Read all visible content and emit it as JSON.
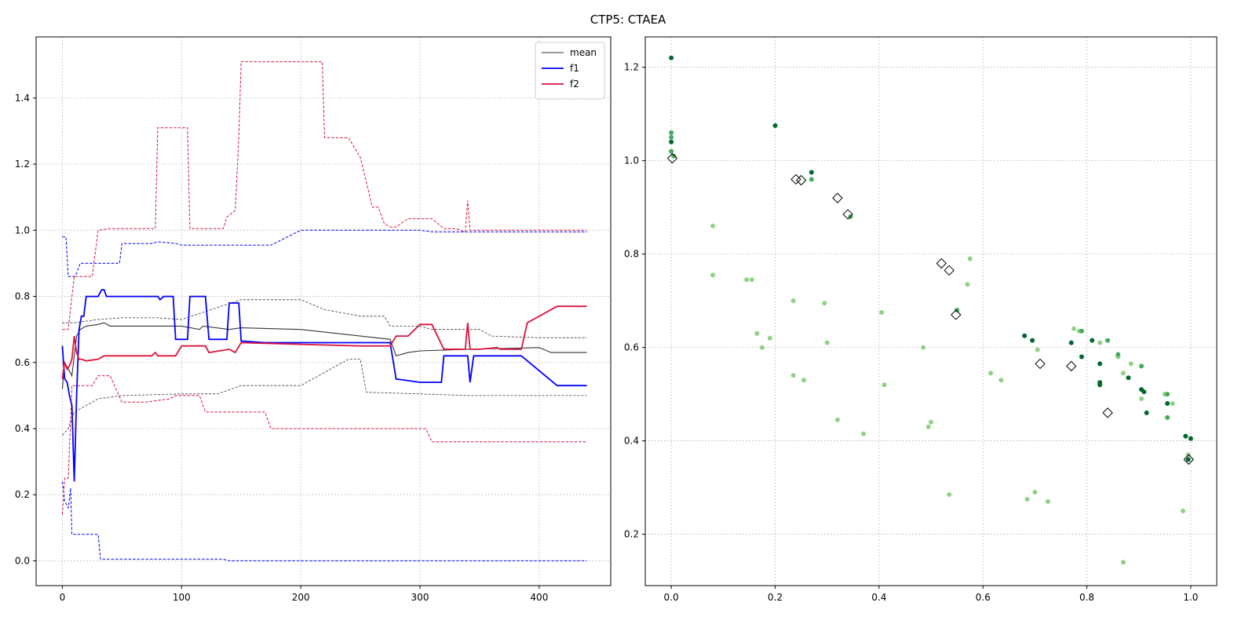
{
  "figure": {
    "title": "CTP5: CTAEA"
  },
  "chart_data": [
    {
      "type": "line",
      "xlim": [
        -22,
        460
      ],
      "ylim": [
        -0.075,
        1.585
      ],
      "xticks": [
        0,
        100,
        200,
        300,
        400
      ],
      "yticks": [
        0.0,
        0.2,
        0.4,
        0.6,
        0.8,
        1.0,
        1.2,
        1.4
      ],
      "xtick_labels": [
        "0",
        "100",
        "200",
        "300",
        "400"
      ],
      "ytick_labels": [
        "0.0",
        "0.2",
        "0.4",
        "0.6",
        "0.8",
        "1.0",
        "1.2",
        "1.4"
      ],
      "grid": true,
      "legend": {
        "placement": "top-right",
        "entries": [
          {
            "label": "mean",
            "color": "#333333"
          },
          {
            "label": "f1",
            "color": "#0000ff"
          },
          {
            "label": "f2",
            "color": "#dc143c"
          }
        ]
      },
      "series": [
        {
          "name": "mean",
          "style": "solid",
          "color": "#333333",
          "x": [
            0,
            2,
            5,
            8,
            10,
            12,
            15,
            20,
            30,
            35,
            40,
            80,
            100,
            115,
            118,
            140,
            150,
            200,
            250,
            275,
            280,
            290,
            300,
            340,
            400,
            410,
            440
          ],
          "y": [
            0.52,
            0.6,
            0.58,
            0.56,
            0.62,
            0.68,
            0.7,
            0.71,
            0.715,
            0.72,
            0.71,
            0.71,
            0.71,
            0.7,
            0.71,
            0.7,
            0.705,
            0.7,
            0.68,
            0.67,
            0.62,
            0.63,
            0.635,
            0.64,
            0.645,
            0.63,
            0.63
          ]
        },
        {
          "name": "mean upper",
          "style": "dashed-thin",
          "color": "#333333",
          "x": [
            0,
            10,
            20,
            30,
            50,
            80,
            100,
            150,
            200,
            220,
            250,
            270,
            275,
            300,
            310,
            350,
            360,
            400,
            440
          ],
          "y": [
            0.72,
            0.72,
            0.725,
            0.73,
            0.735,
            0.735,
            0.73,
            0.79,
            0.79,
            0.76,
            0.74,
            0.74,
            0.71,
            0.71,
            0.7,
            0.7,
            0.68,
            0.675,
            0.675
          ]
        },
        {
          "name": "mean lower",
          "style": "dashed-thin",
          "color": "#333333",
          "x": [
            0,
            5,
            10,
            20,
            30,
            50,
            100,
            130,
            150,
            200,
            240,
            250,
            255,
            300,
            340,
            440
          ],
          "y": [
            0.38,
            0.4,
            0.45,
            0.47,
            0.49,
            0.5,
            0.505,
            0.505,
            0.53,
            0.53,
            0.61,
            0.61,
            0.51,
            0.505,
            0.5,
            0.5
          ]
        },
        {
          "name": "f1",
          "style": "solid",
          "color": "#0000ff",
          "x": [
            0,
            2,
            4,
            6,
            8,
            10,
            12,
            14,
            16,
            18,
            20,
            25,
            30,
            33,
            35,
            37,
            40,
            80,
            82,
            85,
            93,
            95,
            105,
            107,
            120,
            123,
            138,
            140,
            148,
            150,
            170,
            200,
            230,
            260,
            275,
            280,
            300,
            308,
            318,
            320,
            340,
            342,
            345,
            365,
            368,
            385,
            415,
            440
          ],
          "y": [
            0.65,
            0.55,
            0.54,
            0.5,
            0.47,
            0.24,
            0.5,
            0.7,
            0.74,
            0.74,
            0.8,
            0.8,
            0.8,
            0.82,
            0.82,
            0.8,
            0.8,
            0.8,
            0.79,
            0.8,
            0.8,
            0.67,
            0.67,
            0.8,
            0.8,
            0.67,
            0.67,
            0.78,
            0.78,
            0.665,
            0.66,
            0.66,
            0.66,
            0.66,
            0.66,
            0.55,
            0.54,
            0.54,
            0.54,
            0.62,
            0.62,
            0.54,
            0.62,
            0.62,
            0.62,
            0.62,
            0.53,
            0.53
          ]
        },
        {
          "name": "f1 upper",
          "style": "dashed",
          "color": "#0000ff",
          "x": [
            0,
            3,
            5,
            10,
            12,
            15,
            20,
            30,
            40,
            48,
            50,
            75,
            80,
            95,
            100,
            175,
            200,
            250,
            300,
            310,
            350,
            440
          ],
          "y": [
            0.98,
            0.98,
            0.86,
            0.86,
            0.87,
            0.9,
            0.9,
            0.9,
            0.9,
            0.9,
            0.96,
            0.96,
            0.965,
            0.96,
            0.955,
            0.955,
            1.0,
            1.0,
            1.0,
            0.995,
            0.995,
            0.995
          ]
        },
        {
          "name": "f1 lower",
          "style": "dashed",
          "color": "#0000ff",
          "x": [
            0,
            2,
            5,
            7,
            8,
            10,
            20,
            30,
            32,
            100,
            135,
            140,
            300,
            440
          ],
          "y": [
            0.24,
            0.18,
            0.16,
            0.22,
            0.08,
            0.08,
            0.08,
            0.08,
            0.005,
            0.005,
            0.005,
            0.0,
            0.0,
            0.0
          ]
        },
        {
          "name": "f2",
          "style": "solid",
          "color": "#dc143c",
          "x": [
            0,
            2,
            4,
            6,
            8,
            10,
            12,
            14,
            16,
            20,
            30,
            35,
            40,
            75,
            78,
            80,
            95,
            100,
            105,
            120,
            123,
            140,
            145,
            150,
            200,
            250,
            275,
            280,
            290,
            300,
            310,
            320,
            338,
            340,
            342,
            350,
            365,
            367,
            385,
            390,
            415,
            440
          ],
          "y": [
            0.55,
            0.6,
            0.58,
            0.59,
            0.61,
            0.68,
            0.63,
            0.61,
            0.61,
            0.605,
            0.61,
            0.62,
            0.62,
            0.62,
            0.63,
            0.62,
            0.62,
            0.65,
            0.65,
            0.65,
            0.63,
            0.64,
            0.63,
            0.66,
            0.655,
            0.65,
            0.65,
            0.68,
            0.68,
            0.715,
            0.715,
            0.64,
            0.64,
            0.72,
            0.64,
            0.64,
            0.645,
            0.64,
            0.64,
            0.72,
            0.77,
            0.77
          ]
        },
        {
          "name": "f2 upper",
          "style": "dashed",
          "color": "#dc143c",
          "x": [
            0,
            5,
            8,
            10,
            20,
            25,
            30,
            40,
            70,
            78,
            80,
            105,
            107,
            135,
            138,
            145,
            148,
            150,
            170,
            218,
            220,
            240,
            250,
            260,
            265,
            270,
            275,
            280,
            290,
            300,
            310,
            320,
            330,
            338,
            340,
            342,
            440
          ],
          "y": [
            0.7,
            0.7,
            0.8,
            0.86,
            0.86,
            0.86,
            1.0,
            1.005,
            1.005,
            1.005,
            1.31,
            1.31,
            1.005,
            1.005,
            1.04,
            1.06,
            1.28,
            1.51,
            1.51,
            1.51,
            1.28,
            1.28,
            1.22,
            1.07,
            1.07,
            1.02,
            1.01,
            1.01,
            1.035,
            1.035,
            1.035,
            1.005,
            1.005,
            0.995,
            1.09,
            1.0,
            1.0
          ]
        },
        {
          "name": "f2 lower",
          "style": "dashed",
          "color": "#dc143c",
          "x": [
            0,
            2,
            5,
            8,
            12,
            20,
            25,
            30,
            40,
            45,
            50,
            70,
            90,
            95,
            115,
            120,
            130,
            170,
            175,
            200,
            290,
            305,
            310,
            440
          ],
          "y": [
            0.14,
            0.25,
            0.25,
            0.53,
            0.53,
            0.53,
            0.53,
            0.56,
            0.56,
            0.52,
            0.48,
            0.48,
            0.49,
            0.5,
            0.5,
            0.45,
            0.45,
            0.45,
            0.4,
            0.4,
            0.4,
            0.4,
            0.36,
            0.36
          ]
        }
      ]
    },
    {
      "type": "scatter",
      "xlim": [
        -0.05,
        1.05
      ],
      "ylim": [
        0.09,
        1.265
      ],
      "xticks": [
        0.0,
        0.2,
        0.4,
        0.6,
        0.8,
        1.0
      ],
      "yticks": [
        0.2,
        0.4,
        0.6,
        0.8,
        1.0,
        1.2
      ],
      "xtick_labels": [
        "0.0",
        "0.2",
        "0.4",
        "0.6",
        "0.8",
        "1.0"
      ],
      "ytick_labels": [
        "0.2",
        "0.4",
        "0.6",
        "0.8",
        "1.0",
        "1.2"
      ],
      "grid": true,
      "series": [
        {
          "name": "",
          "color": "#90d285",
          "points": [
            [
              0.08,
              0.86
            ],
            [
              0.08,
              0.755
            ],
            [
              0.145,
              0.745
            ],
            [
              0.155,
              0.745
            ],
            [
              0.165,
              0.63
            ],
            [
              0.175,
              0.6
            ],
            [
              0.19,
              0.62
            ],
            [
              0.235,
              0.7
            ],
            [
              0.235,
              0.54
            ],
            [
              0.255,
              0.53
            ],
            [
              0.295,
              0.695
            ],
            [
              0.3,
              0.61
            ],
            [
              0.32,
              0.445
            ],
            [
              0.37,
              0.415
            ],
            [
              0.405,
              0.675
            ],
            [
              0.41,
              0.52
            ],
            [
              0.485,
              0.6
            ],
            [
              0.495,
              0.43
            ],
            [
              0.5,
              0.44
            ],
            [
              0.535,
              0.285
            ],
            [
              0.57,
              0.735
            ],
            [
              0.575,
              0.79
            ],
            [
              0.615,
              0.545
            ],
            [
              0.635,
              0.53
            ],
            [
              0.685,
              0.275
            ],
            [
              0.7,
              0.29
            ],
            [
              0.705,
              0.595
            ],
            [
              0.725,
              0.27
            ],
            [
              0.775,
              0.64
            ],
            [
              0.785,
              0.635
            ],
            [
              0.825,
              0.61
            ],
            [
              0.86,
              0.58
            ],
            [
              0.87,
              0.545
            ],
            [
              0.87,
              0.14
            ],
            [
              0.885,
              0.565
            ],
            [
              0.905,
              0.49
            ],
            [
              0.95,
              0.5
            ],
            [
              0.965,
              0.48
            ],
            [
              0.985,
              0.25
            ],
            [
              0.995,
              0.37
            ]
          ]
        },
        {
          "name": "",
          "color": "#41ab5d",
          "points": [
            [
              0.0,
              1.06
            ],
            [
              0.0,
              1.05
            ],
            [
              0.0,
              1.02
            ],
            [
              0.005,
              1.01
            ],
            [
              0.27,
              0.96
            ],
            [
              0.345,
              0.88
            ],
            [
              0.55,
              0.68
            ],
            [
              0.79,
              0.635
            ],
            [
              0.84,
              0.615
            ],
            [
              0.86,
              0.585
            ],
            [
              0.905,
              0.56
            ],
            [
              0.955,
              0.45
            ],
            [
              0.955,
              0.5
            ]
          ]
        },
        {
          "name": "",
          "color": "#00692f",
          "points": [
            [
              0.0,
              1.22
            ],
            [
              0.0,
              1.04
            ],
            [
              0.2,
              1.075
            ],
            [
              0.27,
              0.975
            ],
            [
              0.68,
              0.625
            ],
            [
              0.695,
              0.615
            ],
            [
              0.77,
              0.61
            ],
            [
              0.79,
              0.58
            ],
            [
              0.81,
              0.615
            ],
            [
              0.825,
              0.565
            ],
            [
              0.825,
              0.525
            ],
            [
              0.825,
              0.52
            ],
            [
              0.88,
              0.535
            ],
            [
              0.905,
              0.51
            ],
            [
              0.91,
              0.505
            ],
            [
              0.915,
              0.46
            ],
            [
              0.955,
              0.48
            ],
            [
              0.99,
              0.41
            ],
            [
              1.0,
              0.405
            ],
            [
              0.995,
              0.36
            ]
          ]
        },
        {
          "name": "",
          "color": "#000000",
          "marker": "diamond-open",
          "points": [
            [
              0.002,
              1.005
            ],
            [
              0.24,
              0.96
            ],
            [
              0.25,
              0.958
            ],
            [
              0.32,
              0.92
            ],
            [
              0.34,
              0.885
            ],
            [
              0.52,
              0.78
            ],
            [
              0.535,
              0.765
            ],
            [
              0.548,
              0.67
            ],
            [
              0.71,
              0.565
            ],
            [
              0.77,
              0.56
            ],
            [
              0.84,
              0.46
            ],
            [
              0.996,
              0.36
            ]
          ]
        }
      ]
    }
  ]
}
